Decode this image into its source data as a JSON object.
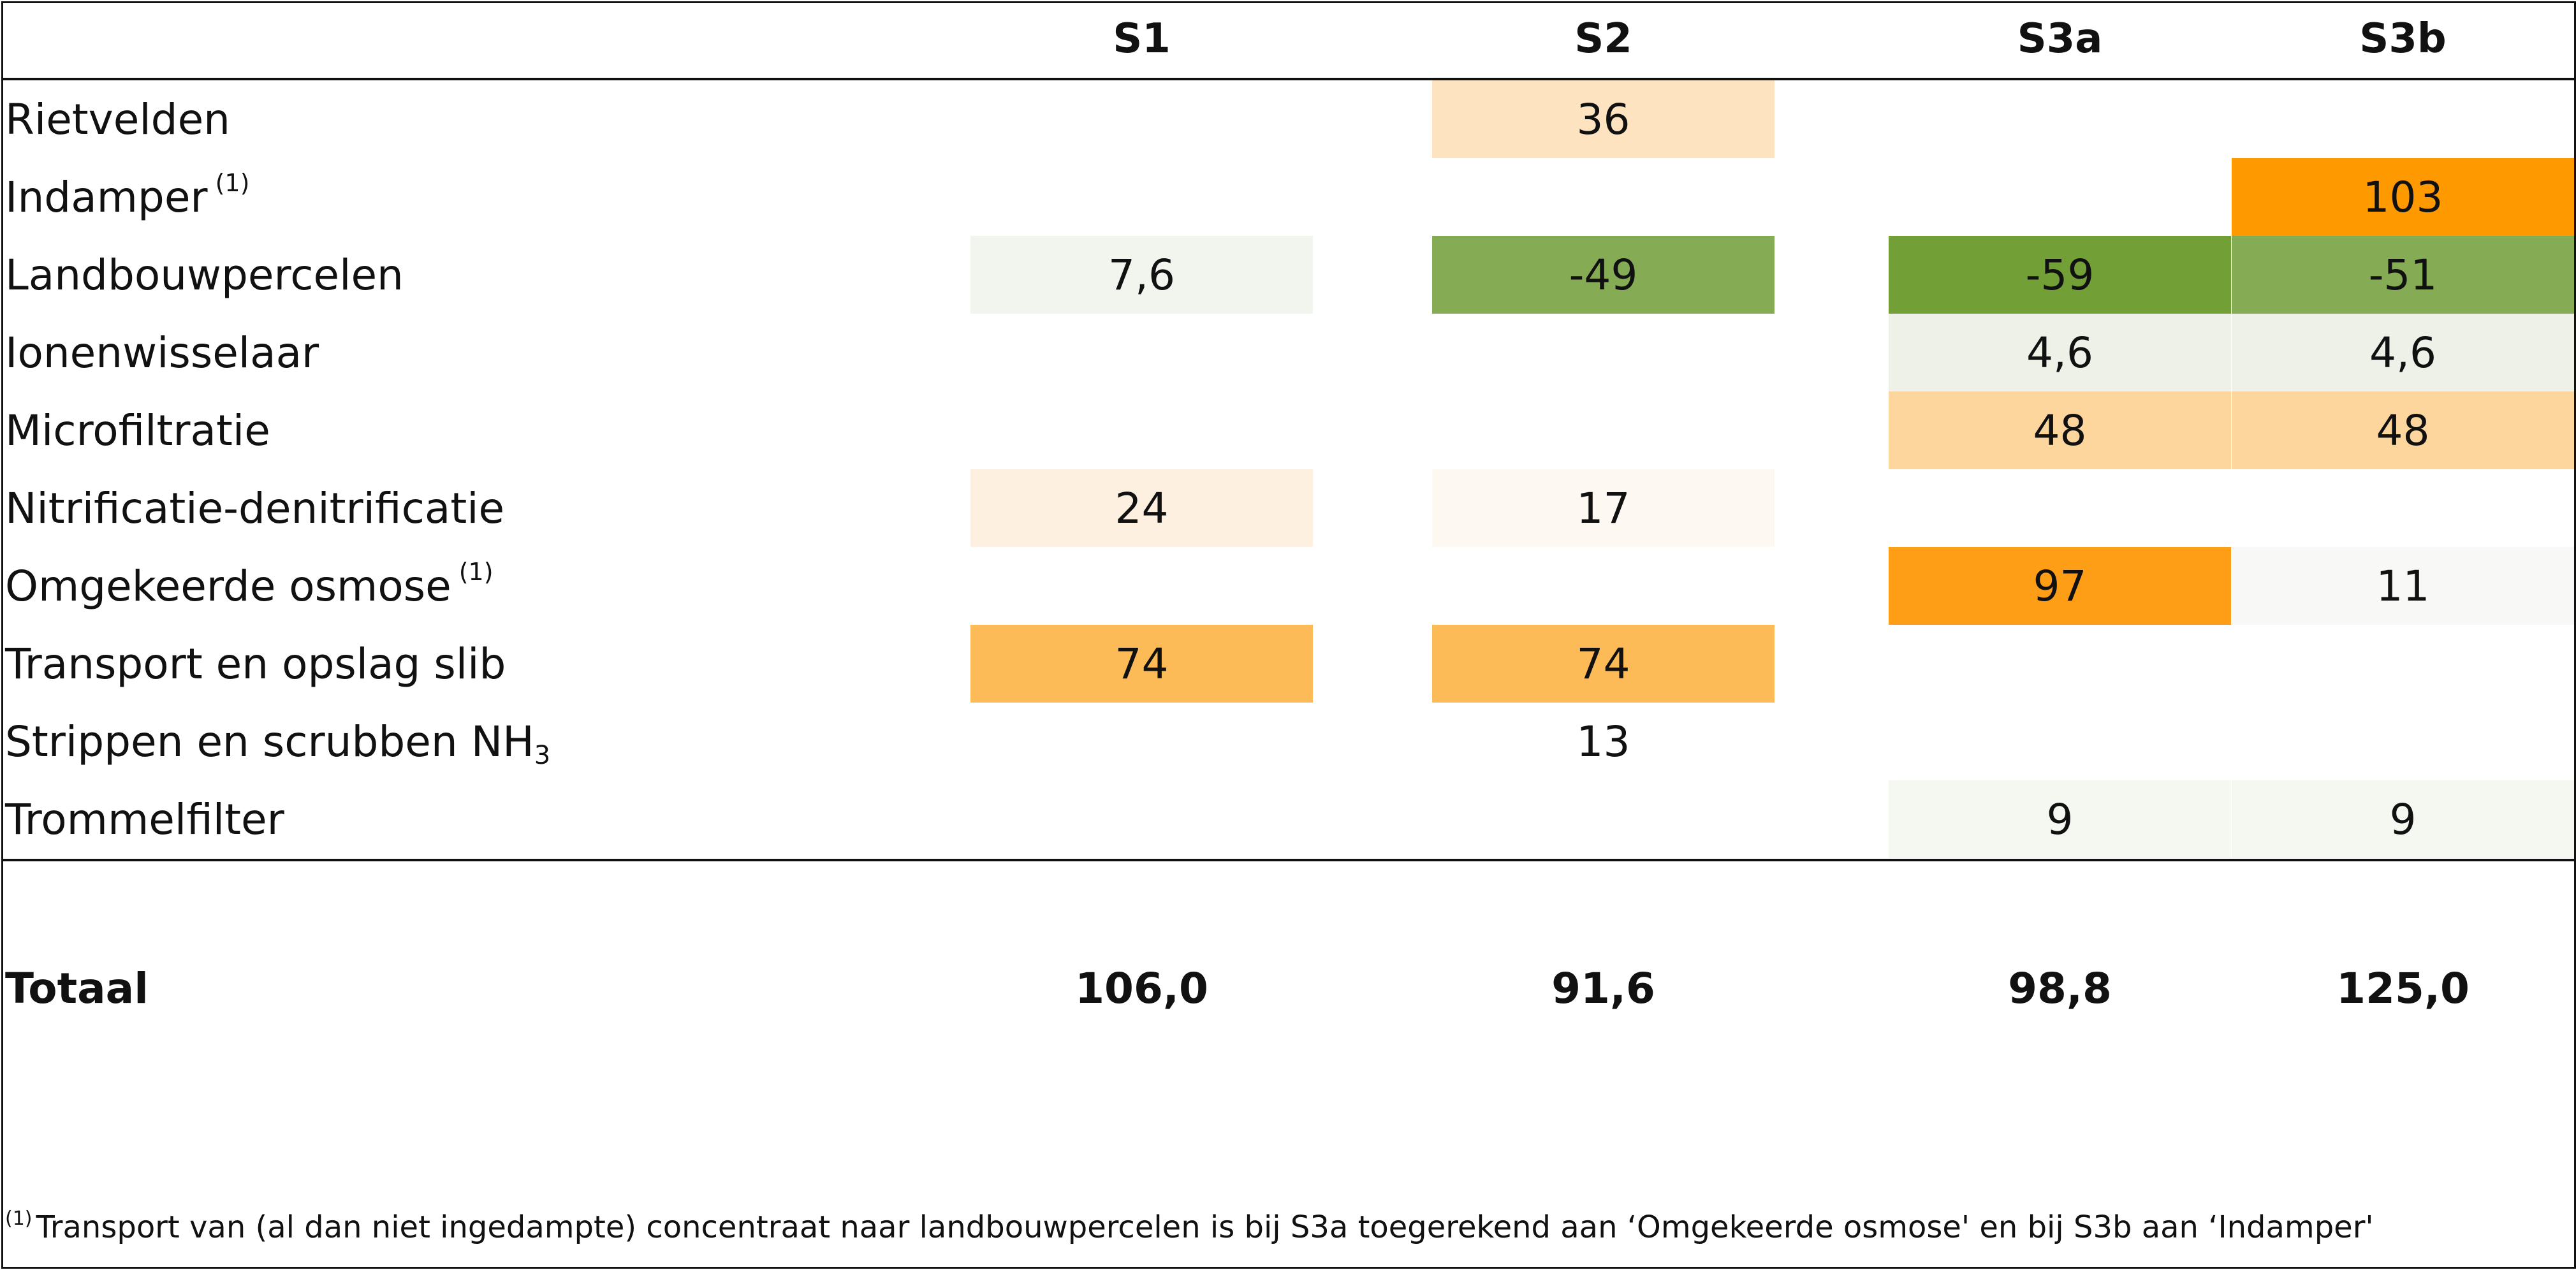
{
  "chart_data": {
    "type": "table",
    "columns": [
      "S1",
      "S2",
      "S3a",
      "S3b"
    ],
    "rows": [
      {
        "label": "Rietvelden",
        "note": "",
        "sub": "",
        "values": [
          "",
          "36",
          "",
          ""
        ],
        "colors": [
          "",
          "#fde3c0",
          "",
          ""
        ]
      },
      {
        "label": "Indamper",
        "note": "(1)",
        "sub": "",
        "values": [
          "",
          "",
          "",
          "103"
        ],
        "colors": [
          "",
          "",
          "",
          "#fe9900"
        ]
      },
      {
        "label": "Landbouwpercelen",
        "note": "",
        "sub": "",
        "values": [
          "7,6",
          "-49",
          "-59",
          "-51"
        ],
        "colors": [
          "#f2f5ee",
          "#86ab55",
          "#739f37",
          "#86ab55"
        ]
      },
      {
        "label": "Ionenwisselaar",
        "note": "",
        "sub": "",
        "values": [
          "",
          "",
          "4,6",
          "4,6"
        ],
        "colors": [
          "",
          "",
          "#edf1e7",
          "#edf1e7"
        ]
      },
      {
        "label": "Microfiltratie",
        "note": "",
        "sub": "",
        "values": [
          "",
          "",
          "48",
          "48"
        ],
        "colors": [
          "",
          "",
          "#fdd69e",
          "#fdd69e"
        ]
      },
      {
        "label": "Nitrificatie-denitrificatie",
        "note": "",
        "sub": "",
        "values": [
          "24",
          "17",
          "",
          ""
        ],
        "colors": [
          "#fdf0e1",
          "#fef8f2",
          "",
          ""
        ]
      },
      {
        "label": "Omgekeerde osmose",
        "note": "(1)",
        "sub": "",
        "values": [
          "",
          "",
          "97",
          "11"
        ],
        "colors": [
          "",
          "",
          "#fe9e16",
          "#f8f8f6"
        ]
      },
      {
        "label": "Transport en opslag slib",
        "note": "",
        "sub": "",
        "values": [
          "74",
          "74",
          "",
          ""
        ],
        "colors": [
          "#fdbb57",
          "#fdbb57",
          "",
          ""
        ]
      },
      {
        "label": "Strippen en scrubben NH",
        "note": "",
        "sub": "3",
        "values": [
          "",
          "13",
          "",
          ""
        ],
        "colors": [
          "",
          "",
          "",
          ""
        ]
      },
      {
        "label": "Trommelfilter",
        "note": "",
        "sub": "",
        "values": [
          "",
          "",
          "9",
          "9"
        ],
        "colors": [
          "",
          "",
          "#f5f7f1",
          "#f5f7f1"
        ]
      }
    ],
    "total": {
      "label": "Totaal",
      "values": [
        "106,0",
        "91,6",
        "98,8",
        "125,0"
      ]
    },
    "footnote": {
      "mark": "(1)",
      "text": "Transport van (al dan niet ingedampte) concentraat naar landbouwpercelen is bij  S3a toegerekend aan ‘Omgekeerde osmose' en bij S3b aan ‘Indamper'"
    }
  }
}
